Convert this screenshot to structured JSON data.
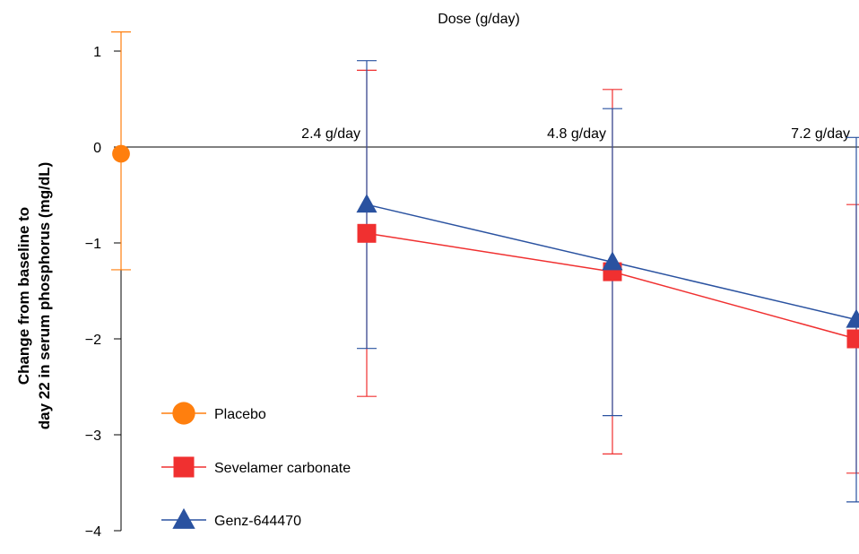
{
  "chart_data": {
    "type": "line",
    "title": "Dose (g/day)",
    "ylabel_lines": [
      "Change from baseline to",
      "day 22 in serum phosphorus (mg/dL)"
    ],
    "ylim": [
      -4,
      1
    ],
    "yticks": [
      1,
      0,
      -1,
      -2,
      -3,
      -4
    ],
    "ytick_labels": [
      "1",
      "0",
      "−1",
      "−2",
      "−3",
      "−4"
    ],
    "categories": [
      "Placebo",
      "2.4 g/day",
      "4.8 g/day",
      "7.2 g/day"
    ],
    "category_labels": [
      "",
      "2.4 g/day",
      "4.8 g/day",
      "7.2 g/day"
    ],
    "grid": false,
    "legend_position": "bottom-left",
    "series": [
      {
        "name": "Placebo",
        "marker": "circle",
        "color": "#ff7f0e",
        "line_color": "#ff7f0e",
        "points": [
          {
            "cat": 0,
            "y": -0.07,
            "err_low": -1.28,
            "err_high": 1.2
          }
        ]
      },
      {
        "name": "Sevelamer carbonate",
        "marker": "square",
        "color": "#f03030",
        "line_color": "#f03030",
        "points": [
          {
            "cat": 1,
            "y": -0.9,
            "err_low": -2.6,
            "err_high": 0.8
          },
          {
            "cat": 2,
            "y": -1.3,
            "err_low": -3.2,
            "err_high": 0.6
          },
          {
            "cat": 3,
            "y": -2.0,
            "err_low": -3.4,
            "err_high": -0.6
          }
        ]
      },
      {
        "name": "Genz-644470",
        "marker": "triangle",
        "color": "#2a52a0",
        "line_color": "#2a52a0",
        "points": [
          {
            "cat": 1,
            "y": -0.6,
            "err_low": -2.1,
            "err_high": 0.9
          },
          {
            "cat": 2,
            "y": -1.2,
            "err_low": -2.8,
            "err_high": 0.4
          },
          {
            "cat": 3,
            "y": -1.8,
            "err_low": -3.7,
            "err_high": 0.1
          }
        ]
      }
    ]
  }
}
